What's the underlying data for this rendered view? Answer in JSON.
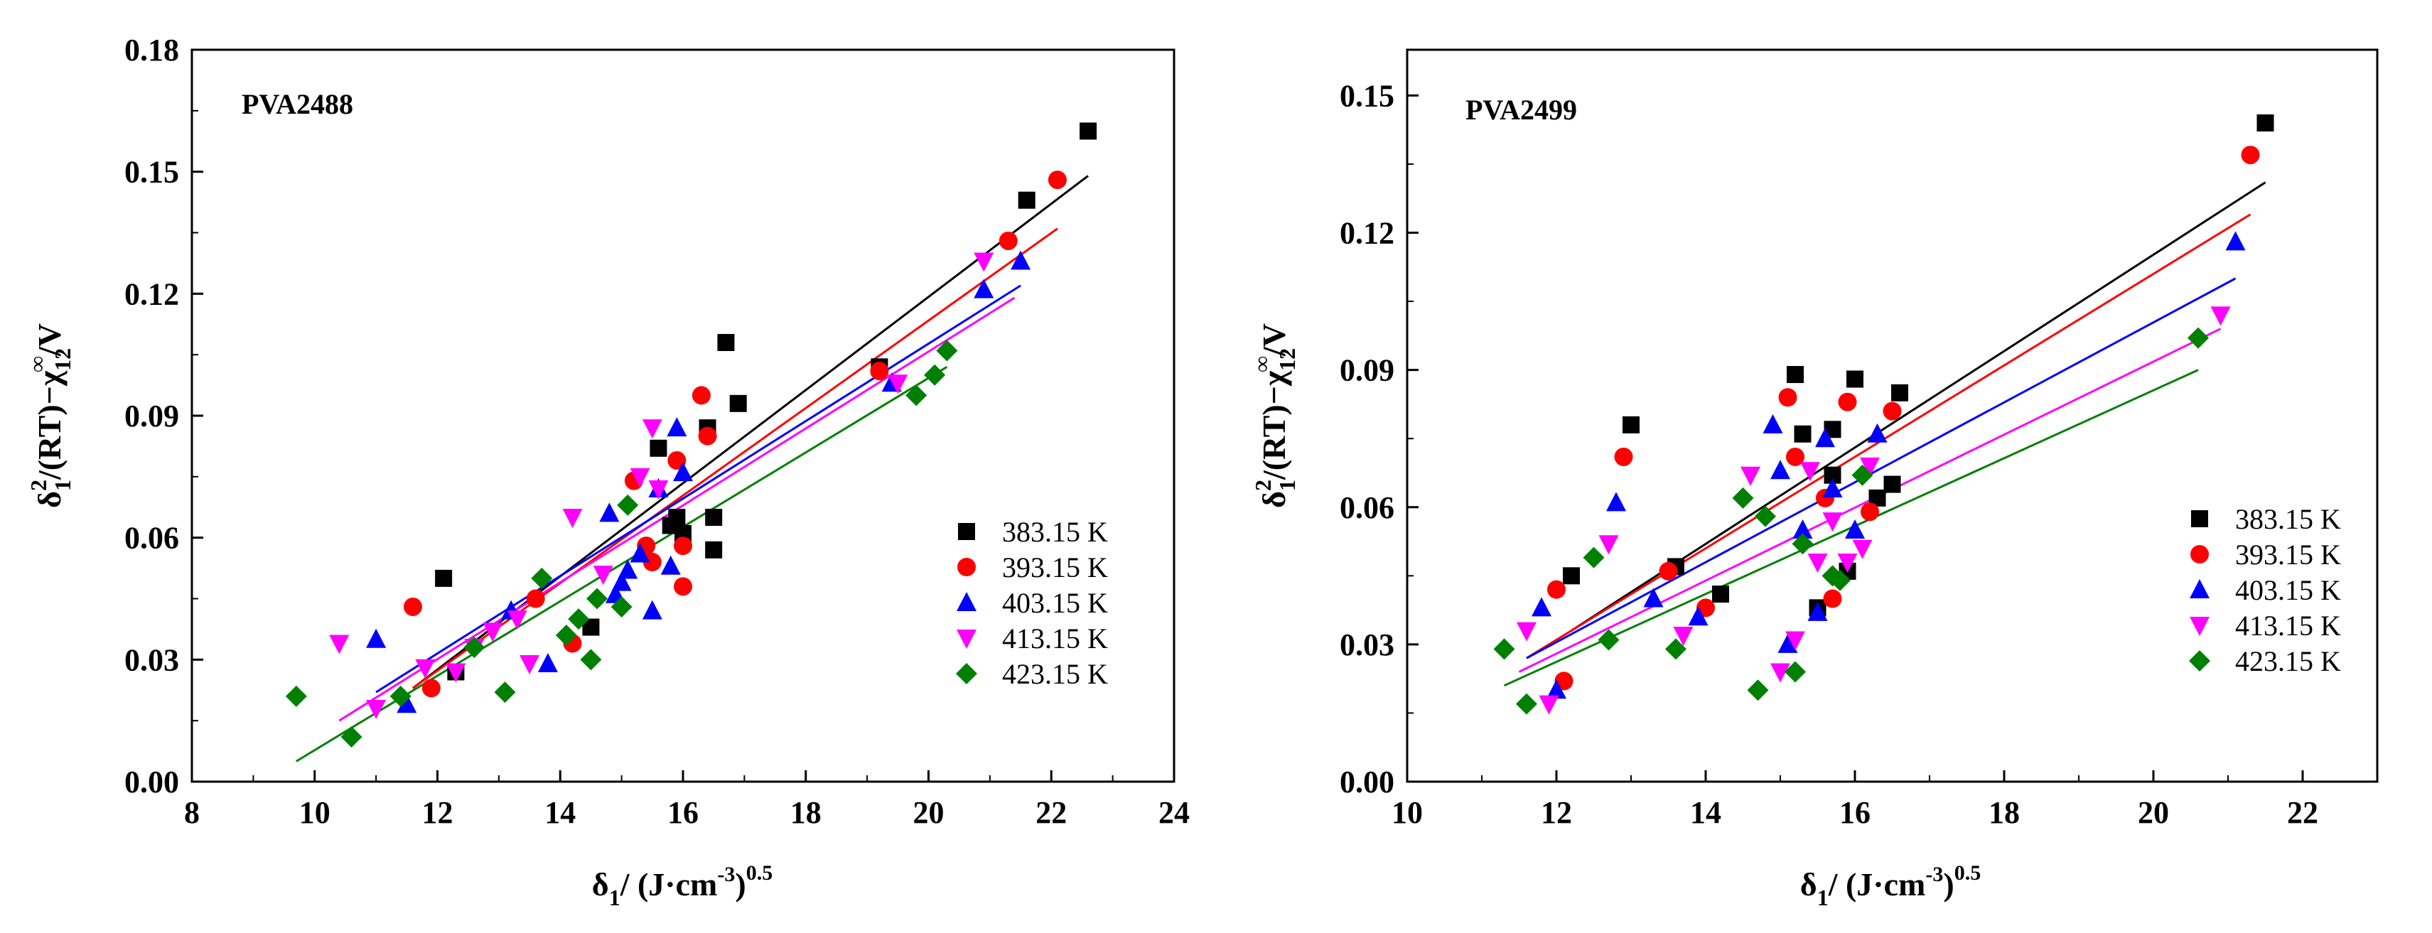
{
  "chart_data": [
    {
      "type": "scatter",
      "annotation": "PVA2488",
      "xlabel": {
        "base": "δ",
        "sub": "1",
        "unit": "/ (J·cm",
        "exp1": "-3",
        "close": ")",
        "exp2": "0.5"
      },
      "ylabel": {
        "delta": "δ",
        "sub1": "1",
        "sup1": "2",
        "mid": "/(RT)−χ",
        "sub2": "12",
        "sup2": "∞",
        "tail": "/V"
      },
      "xlim": [
        8,
        24
      ],
      "ylim": [
        0,
        0.18
      ],
      "xticks": [
        "8",
        "10",
        "12",
        "14",
        "16",
        "18",
        "20",
        "22",
        "24"
      ],
      "xtick_values": [
        8,
        10,
        12,
        14,
        16,
        18,
        20,
        22,
        24
      ],
      "yticks": [
        "0.00",
        "0.03",
        "0.06",
        "0.09",
        "0.12",
        "0.15",
        "0.18"
      ],
      "ytick_values": [
        0,
        0.03,
        0.06,
        0.09,
        0.12,
        0.15,
        0.18
      ],
      "legend_position": "bottom-right",
      "series": [
        {
          "name": "383.15 K",
          "marker": "square",
          "color": "#000000",
          "points": [
            [
              12.1,
              0.05
            ],
            [
              12.3,
              0.027
            ],
            [
              14.5,
              0.038
            ],
            [
              15.6,
              0.082
            ],
            [
              15.8,
              0.063
            ],
            [
              15.9,
              0.065
            ],
            [
              16.0,
              0.061
            ],
            [
              16.4,
              0.087
            ],
            [
              16.5,
              0.057
            ],
            [
              16.5,
              0.065
            ],
            [
              16.7,
              0.108
            ],
            [
              16.9,
              0.093
            ],
            [
              19.2,
              0.102
            ],
            [
              21.6,
              0.143
            ],
            [
              22.6,
              0.16
            ]
          ],
          "fit": [
            [
              11.6,
              0.023
            ],
            [
              22.6,
              0.149
            ]
          ]
        },
        {
          "name": "393.15 K",
          "marker": "circle",
          "color": "#ff0000",
          "points": [
            [
              11.6,
              0.043
            ],
            [
              11.9,
              0.023
            ],
            [
              13.6,
              0.045
            ],
            [
              14.2,
              0.034
            ],
            [
              15.2,
              0.074
            ],
            [
              15.4,
              0.058
            ],
            [
              15.5,
              0.054
            ],
            [
              15.9,
              0.079
            ],
            [
              16.0,
              0.058
            ],
            [
              16.0,
              0.048
            ],
            [
              16.3,
              0.095
            ],
            [
              16.4,
              0.085
            ],
            [
              19.2,
              0.101
            ],
            [
              21.3,
              0.133
            ],
            [
              22.1,
              0.148
            ]
          ],
          "fit": [
            [
              11.6,
              0.023
            ],
            [
              22.1,
              0.136
            ]
          ]
        },
        {
          "name": "403.15 K",
          "marker": "triangle-up",
          "color": "#0000ff",
          "points": [
            [
              11.0,
              0.035
            ],
            [
              11.5,
              0.019
            ],
            [
              13.2,
              0.042
            ],
            [
              13.8,
              0.029
            ],
            [
              14.8,
              0.066
            ],
            [
              14.9,
              0.046
            ],
            [
              15.0,
              0.049
            ],
            [
              15.1,
              0.052
            ],
            [
              15.3,
              0.056
            ],
            [
              15.5,
              0.042
            ],
            [
              15.6,
              0.072
            ],
            [
              15.8,
              0.053
            ],
            [
              15.9,
              0.087
            ],
            [
              16.0,
              0.076
            ],
            [
              19.4,
              0.098
            ],
            [
              20.9,
              0.121
            ],
            [
              21.5,
              0.128
            ]
          ],
          "fit": [
            [
              11.0,
              0.022
            ],
            [
              21.5,
              0.122
            ]
          ]
        },
        {
          "name": "413.15 K",
          "marker": "triangle-down",
          "color": "#ff00ff",
          "points": [
            [
              10.4,
              0.034
            ],
            [
              11.0,
              0.018
            ],
            [
              11.8,
              0.028
            ],
            [
              12.3,
              0.027
            ],
            [
              12.6,
              0.033
            ],
            [
              12.9,
              0.037
            ],
            [
              13.3,
              0.04
            ],
            [
              13.5,
              0.029
            ],
            [
              14.2,
              0.065
            ],
            [
              14.7,
              0.051
            ],
            [
              15.3,
              0.075
            ],
            [
              15.5,
              0.087
            ],
            [
              15.6,
              0.072
            ],
            [
              19.5,
              0.098
            ],
            [
              20.9,
              0.128
            ]
          ],
          "fit": [
            [
              10.4,
              0.015
            ],
            [
              21.4,
              0.119
            ]
          ]
        },
        {
          "name": "423.15 K",
          "marker": "diamond",
          "color": "#008000",
          "points": [
            [
              9.7,
              0.021
            ],
            [
              10.6,
              0.011
            ],
            [
              11.4,
              0.021
            ],
            [
              12.6,
              0.033
            ],
            [
              13.1,
              0.022
            ],
            [
              13.7,
              0.05
            ],
            [
              14.1,
              0.036
            ],
            [
              14.3,
              0.04
            ],
            [
              14.5,
              0.03
            ],
            [
              14.6,
              0.045
            ],
            [
              15.0,
              0.043
            ],
            [
              15.1,
              0.068
            ],
            [
              19.8,
              0.095
            ],
            [
              20.1,
              0.1
            ],
            [
              20.3,
              0.106
            ]
          ],
          "fit": [
            [
              9.7,
              0.005
            ],
            [
              20.3,
              0.102
            ]
          ]
        }
      ]
    },
    {
      "type": "scatter",
      "annotation": "PVA2499",
      "xlabel": {
        "base": "δ",
        "sub": "1",
        "unit": "/ (J·cm",
        "exp1": "-3",
        "close": ")",
        "exp2": "0.5"
      },
      "ylabel": {
        "delta": "δ",
        "sub1": "1",
        "sup1": "2",
        "mid": "/(RT)−χ",
        "sub2": "12",
        "sup2": "∞",
        "tail": "/V"
      },
      "xlim": [
        10,
        23
      ],
      "ylim": [
        0,
        0.16
      ],
      "xticks": [
        "10",
        "12",
        "14",
        "16",
        "18",
        "20",
        "22"
      ],
      "xtick_values": [
        10,
        12,
        14,
        16,
        18,
        20,
        22
      ],
      "yticks": [
        "0.00",
        "0.03",
        "0.06",
        "0.09",
        "0.12",
        "0.15"
      ],
      "ytick_values": [
        0,
        0.03,
        0.06,
        0.09,
        0.12,
        0.15
      ],
      "legend_position": "bottom-right",
      "series": [
        {
          "name": "383.15 K",
          "marker": "square",
          "color": "#000000",
          "points": [
            [
              12.2,
              0.045
            ],
            [
              13.0,
              0.078
            ],
            [
              13.6,
              0.047
            ],
            [
              14.2,
              0.041
            ],
            [
              15.2,
              0.089
            ],
            [
              15.3,
              0.076
            ],
            [
              15.5,
              0.038
            ],
            [
              15.7,
              0.067
            ],
            [
              15.7,
              0.077
            ],
            [
              15.9,
              0.046
            ],
            [
              16.0,
              0.088
            ],
            [
              16.3,
              0.062
            ],
            [
              16.5,
              0.065
            ],
            [
              16.6,
              0.085
            ],
            [
              21.5,
              0.144
            ]
          ],
          "fit": [
            [
              12.2,
              0.033
            ],
            [
              21.5,
              0.131
            ]
          ]
        },
        {
          "name": "393.15 K",
          "marker": "circle",
          "color": "#ff0000",
          "points": [
            [
              12.0,
              0.042
            ],
            [
              12.1,
              0.022
            ],
            [
              12.9,
              0.071
            ],
            [
              13.5,
              0.046
            ],
            [
              14.0,
              0.038
            ],
            [
              15.1,
              0.084
            ],
            [
              15.2,
              0.071
            ],
            [
              15.6,
              0.062
            ],
            [
              15.7,
              0.04
            ],
            [
              15.9,
              0.083
            ],
            [
              16.2,
              0.059
            ],
            [
              16.5,
              0.081
            ],
            [
              21.3,
              0.137
            ]
          ],
          "fit": [
            [
              11.6,
              0.027
            ],
            [
              21.3,
              0.124
            ]
          ]
        },
        {
          "name": "403.15 K",
          "marker": "triangle-up",
          "color": "#0000ff",
          "points": [
            [
              11.8,
              0.038
            ],
            [
              12.0,
              0.02
            ],
            [
              12.8,
              0.061
            ],
            [
              13.3,
              0.04
            ],
            [
              13.9,
              0.036
            ],
            [
              14.9,
              0.078
            ],
            [
              15.0,
              0.068
            ],
            [
              15.1,
              0.03
            ],
            [
              15.3,
              0.055
            ],
            [
              15.5,
              0.037
            ],
            [
              15.6,
              0.075
            ],
            [
              15.7,
              0.064
            ],
            [
              16.0,
              0.055
            ],
            [
              16.3,
              0.076
            ],
            [
              21.1,
              0.118
            ]
          ],
          "fit": [
            [
              11.6,
              0.027
            ],
            [
              21.1,
              0.11
            ]
          ]
        },
        {
          "name": "413.15 K",
          "marker": "triangle-down",
          "color": "#ff00ff",
          "points": [
            [
              11.6,
              0.033
            ],
            [
              11.9,
              0.017
            ],
            [
              12.7,
              0.052
            ],
            [
              13.7,
              0.032
            ],
            [
              14.6,
              0.067
            ],
            [
              15.0,
              0.024
            ],
            [
              15.2,
              0.031
            ],
            [
              15.4,
              0.068
            ],
            [
              15.5,
              0.048
            ],
            [
              15.7,
              0.057
            ],
            [
              15.9,
              0.048
            ],
            [
              16.1,
              0.051
            ],
            [
              16.2,
              0.069
            ],
            [
              20.9,
              0.102
            ]
          ],
          "fit": [
            [
              11.5,
              0.024
            ],
            [
              20.9,
              0.099
            ]
          ]
        },
        {
          "name": "423.15 K",
          "marker": "diamond",
          "color": "#008000",
          "points": [
            [
              11.3,
              0.029
            ],
            [
              11.6,
              0.017
            ],
            [
              12.5,
              0.049
            ],
            [
              12.7,
              0.031
            ],
            [
              13.6,
              0.029
            ],
            [
              14.5,
              0.062
            ],
            [
              14.7,
              0.02
            ],
            [
              14.8,
              0.058
            ],
            [
              15.2,
              0.024
            ],
            [
              15.3,
              0.052
            ],
            [
              15.7,
              0.045
            ],
            [
              15.8,
              0.044
            ],
            [
              16.1,
              0.067
            ],
            [
              20.6,
              0.097
            ]
          ],
          "fit": [
            [
              11.3,
              0.021
            ],
            [
              20.6,
              0.09
            ]
          ]
        }
      ]
    }
  ]
}
